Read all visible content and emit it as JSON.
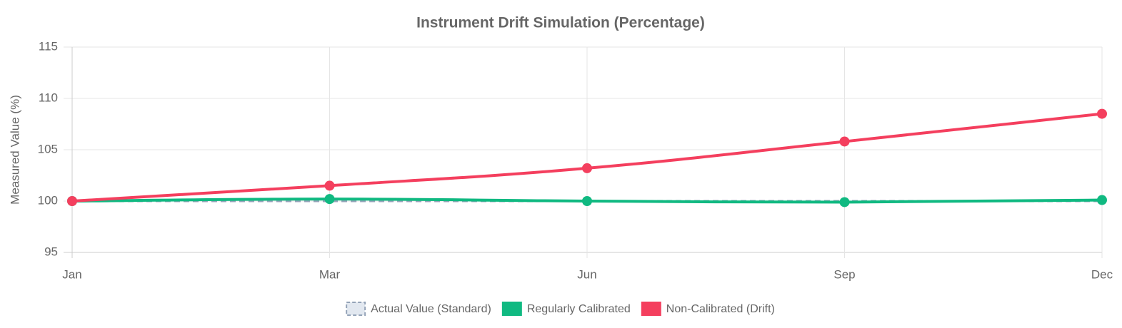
{
  "chart_data": {
    "type": "line",
    "title": "Instrument Drift Simulation (Percentage)",
    "y_label": "Measured Value (%)",
    "categories": [
      "Jan",
      "Mar",
      "Jun",
      "Sep",
      "Dec"
    ],
    "series": [
      {
        "name": "Actual Value (Standard)",
        "color": "#94a3b8",
        "dashed": true,
        "values": [
          100,
          100,
          100,
          100,
          100
        ]
      },
      {
        "name": "Regularly Calibrated",
        "color": "#10b981",
        "dashed": false,
        "values": [
          100,
          100.2,
          100,
          99.9,
          100.1
        ]
      },
      {
        "name": "Non-Calibrated (Drift)",
        "color": "#f43f5e",
        "dashed": false,
        "values": [
          100,
          101.5,
          103.2,
          105.8,
          108.5
        ]
      }
    ],
    "ylim": [
      95,
      115
    ],
    "yticks": [
      95,
      100,
      105,
      110,
      115
    ],
    "grid": true
  }
}
